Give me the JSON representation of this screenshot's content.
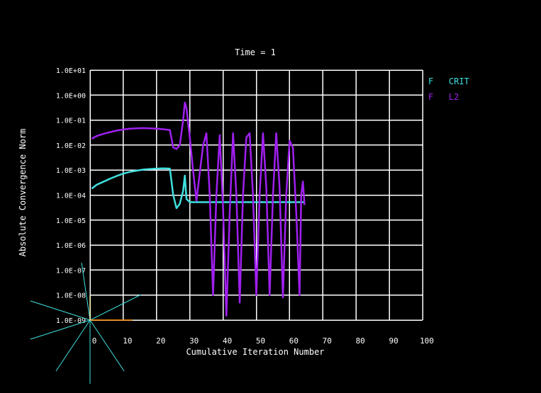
{
  "chart_data": {
    "type": "line",
    "title": "Time = 1",
    "xlabel": "Cumulative Iteration Number",
    "ylabel": "Absolute Convergence Norm",
    "xlim": [
      0,
      100
    ],
    "ylim_exponent": [
      -9,
      1
    ],
    "y_scale": "log",
    "grid": true,
    "legend_position": "right",
    "xticks": [
      "0",
      "10",
      "20",
      "30",
      "40",
      "50",
      "60",
      "70",
      "80",
      "90",
      "100"
    ],
    "yticks": [
      "1.0E-09",
      "1.0E-08",
      "1.0E-07",
      "1.0E-06",
      "1.0E-05",
      "1.0E-04",
      "1.0E-03",
      "1.0E-02",
      "1.0E-01",
      "1.0E+00",
      "1.0E+01"
    ],
    "colors": {
      "background": "#000000",
      "grid": "#ffffff",
      "crit": "#40e0e0",
      "l2": "#a020f0"
    },
    "series": [
      {
        "name": "F   CRIT",
        "color": "#40e0e0",
        "points": [
          [
            0.5,
            0.00018
          ],
          [
            2,
            0.00026
          ],
          [
            4,
            0.00034
          ],
          [
            6,
            0.00045
          ],
          [
            8,
            0.00058
          ],
          [
            10,
            0.00072
          ],
          [
            12,
            0.00085
          ],
          [
            14,
            0.00095
          ],
          [
            16,
            0.00105
          ],
          [
            18,
            0.0011
          ],
          [
            20,
            0.00115
          ],
          [
            22,
            0.00117
          ],
          [
            24,
            0.00115
          ],
          [
            25,
            0.0001
          ],
          [
            26,
            3e-05
          ],
          [
            27,
            4.5e-05
          ],
          [
            28,
            0.00015
          ],
          [
            28.5,
            0.0006
          ],
          [
            29,
            7e-05
          ],
          [
            30,
            5.2e-05
          ],
          [
            34,
            5.2e-05
          ],
          [
            40,
            5.2e-05
          ],
          [
            50,
            5.2e-05
          ],
          [
            60,
            5.2e-05
          ],
          [
            64.5,
            5.2e-05
          ]
        ]
      },
      {
        "name": "F   L2",
        "color": "#a020f0",
        "points": [
          [
            0.5,
            0.018
          ],
          [
            2,
            0.023
          ],
          [
            4,
            0.028
          ],
          [
            6,
            0.033
          ],
          [
            8,
            0.038
          ],
          [
            10,
            0.042
          ],
          [
            12,
            0.045
          ],
          [
            14,
            0.047
          ],
          [
            16,
            0.048
          ],
          [
            18,
            0.047
          ],
          [
            20,
            0.045
          ],
          [
            22,
            0.043
          ],
          [
            24,
            0.04
          ],
          [
            25,
            0.008
          ],
          [
            26,
            0.007
          ],
          [
            27,
            0.01
          ],
          [
            28,
            0.1
          ],
          [
            28.5,
            0.5
          ],
          [
            29,
            0.3
          ],
          [
            30,
            0.02
          ],
          [
            31,
            0.0009
          ],
          [
            32,
            6e-05
          ],
          [
            33,
            0.0008
          ],
          [
            34,
            0.01
          ],
          [
            35,
            0.03
          ],
          [
            36,
            0.0001
          ],
          [
            37,
            1e-08
          ],
          [
            38,
            0.0001
          ],
          [
            39,
            0.025
          ],
          [
            40,
            3e-05
          ],
          [
            41,
            1.5e-09
          ],
          [
            42,
            2e-05
          ],
          [
            43,
            0.03
          ],
          [
            44,
            0.0001
          ],
          [
            45,
            5e-09
          ],
          [
            46,
            0.0001
          ],
          [
            47,
            0.02
          ],
          [
            48,
            0.03
          ],
          [
            49,
            0.0001
          ],
          [
            50,
            1e-08
          ],
          [
            51,
            0.0001
          ],
          [
            52,
            0.03
          ],
          [
            53,
            0.0002
          ],
          [
            54,
            1e-08
          ],
          [
            55,
            0.0001
          ],
          [
            56,
            0.03
          ],
          [
            57,
            0.0002
          ],
          [
            58,
            8e-09
          ],
          [
            59,
            0.0001
          ],
          [
            60,
            0.015
          ],
          [
            61,
            0.008
          ],
          [
            62,
            2e-05
          ],
          [
            63,
            1e-08
          ],
          [
            63.5,
            0.0001
          ],
          [
            64,
            0.00035
          ],
          [
            64.5,
            4e-05
          ]
        ]
      }
    ]
  },
  "triad_lines": [
    [
      -5,
      -45
    ],
    [
      -35,
      -15
    ],
    [
      -35,
      15
    ],
    [
      -20,
      40
    ],
    [
      0,
      50
    ],
    [
      20,
      40
    ],
    [
      30,
      -20
    ]
  ],
  "triad_axes": {
    "x_color": "#ff8c00",
    "y_color": "#e8e8a0",
    "z_color": "#40e0e0"
  }
}
